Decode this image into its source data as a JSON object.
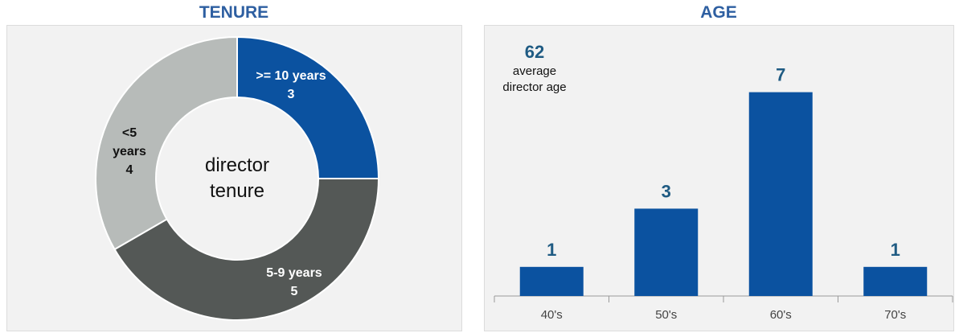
{
  "chart_data": [
    {
      "type": "pie",
      "title": "TENURE",
      "center_label": [
        "director",
        "tenure"
      ],
      "slices": [
        {
          "label": ">= 10 years",
          "value": 3,
          "color": "#0b52a0"
        },
        {
          "label": "5-9 years",
          "value": 5,
          "color": "#545856"
        },
        {
          "label": "<5 years",
          "value": 4,
          "color": "#b7bbb9"
        }
      ]
    },
    {
      "type": "bar",
      "title": "AGE",
      "categories": [
        "40's",
        "50's",
        "60's",
        "70's"
      ],
      "values": [
        1,
        3,
        7,
        1
      ],
      "bar_color": "#0b52a0",
      "value_label_color": "#1f5b83",
      "ylim": [
        0,
        8
      ],
      "grid": false,
      "annotation": {
        "value": "62",
        "text": [
          "average",
          "director age"
        ]
      }
    }
  ]
}
